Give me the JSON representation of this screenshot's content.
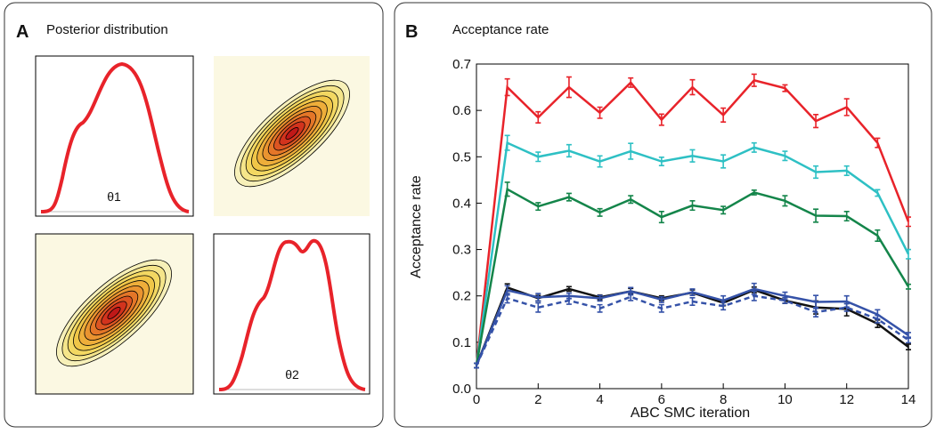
{
  "panels": [
    {
      "label": "A",
      "title": "Posterior distribution",
      "parameters": [
        "θ1",
        "θ2"
      ]
    },
    {
      "label": "B"
    }
  ],
  "chart_data": {
    "type": "line",
    "title": "Acceptance rate",
    "xlabel": "ABC SMC iteration",
    "ylabel": "Acceptance rate",
    "x": [
      0,
      1,
      2,
      3,
      4,
      5,
      6,
      7,
      8,
      9,
      10,
      11,
      12,
      13,
      14
    ],
    "xlim": [
      0,
      14
    ],
    "xticks": [
      0,
      2,
      4,
      6,
      8,
      10,
      12,
      14
    ],
    "ylim": [
      0,
      0.7
    ],
    "yticks": [
      {
        "value": 0,
        "label": "0.0"
      },
      0.1,
      0.2,
      0.3,
      0.4,
      0.5,
      0.6,
      0.7
    ],
    "series": [
      {
        "color": "#e8232a",
        "linestyle": "solid",
        "values": [
          0.05,
          0.65,
          0.585,
          0.65,
          0.595,
          0.66,
          0.58,
          0.65,
          0.59,
          0.665,
          0.648,
          0.577,
          0.607,
          0.53,
          0.36
        ],
        "errors": [
          0.005,
          0.018,
          0.012,
          0.022,
          0.012,
          0.01,
          0.012,
          0.016,
          0.015,
          0.013,
          0.007,
          0.014,
          0.018,
          0.01,
          0.01
        ]
      },
      {
        "color": "#2ec0c4",
        "linestyle": "solid",
        "values": [
          0.05,
          0.53,
          0.5,
          0.513,
          0.49,
          0.512,
          0.49,
          0.502,
          0.49,
          0.52,
          0.502,
          0.467,
          0.47,
          0.422,
          0.29
        ],
        "errors": [
          0.005,
          0.016,
          0.01,
          0.013,
          0.012,
          0.017,
          0.009,
          0.013,
          0.014,
          0.01,
          0.01,
          0.013,
          0.01,
          0.007,
          0.01
        ]
      },
      {
        "color": "#14854a",
        "linestyle": "solid",
        "values": [
          0.05,
          0.43,
          0.393,
          0.413,
          0.38,
          0.408,
          0.37,
          0.395,
          0.385,
          0.423,
          0.405,
          0.373,
          0.372,
          0.33,
          0.22
        ],
        "errors": [
          0.005,
          0.015,
          0.008,
          0.008,
          0.008,
          0.008,
          0.012,
          0.01,
          0.008,
          0.005,
          0.011,
          0.014,
          0.01,
          0.012,
          0.005
        ]
      },
      {
        "color": "#111111",
        "linestyle": "solid",
        "values": [
          0.05,
          0.218,
          0.195,
          0.215,
          0.197,
          0.21,
          0.195,
          0.207,
          0.185,
          0.213,
          0.19,
          0.175,
          0.172,
          0.14,
          0.09
        ],
        "errors": [
          0.005,
          0.008,
          0.006,
          0.005,
          0.005,
          0.006,
          0.005,
          0.006,
          0.006,
          0.006,
          0.006,
          0.014,
          0.015,
          0.008,
          0.006
        ]
      },
      {
        "color": "#3552a8",
        "linestyle": "solid",
        "values": [
          0.05,
          0.212,
          0.197,
          0.2,
          0.195,
          0.21,
          0.192,
          0.208,
          0.19,
          0.215,
          0.2,
          0.187,
          0.188,
          0.16,
          0.115
        ],
        "errors": [
          0.005,
          0.01,
          0.008,
          0.006,
          0.006,
          0.008,
          0.006,
          0.007,
          0.01,
          0.012,
          0.008,
          0.014,
          0.012,
          0.01,
          0.006
        ]
      },
      {
        "color": "#3552a8",
        "linestyle": "dashed",
        "values": [
          0.05,
          0.195,
          0.175,
          0.19,
          0.173,
          0.198,
          0.173,
          0.188,
          0.178,
          0.2,
          0.19,
          0.165,
          0.175,
          0.15,
          0.105
        ],
        "errors": [
          0.005,
          0.01,
          0.01,
          0.008,
          0.008,
          0.008,
          0.008,
          0.008,
          0.008,
          0.01,
          0.006,
          0.01,
          0.008,
          0.008,
          0.006
        ]
      }
    ]
  }
}
